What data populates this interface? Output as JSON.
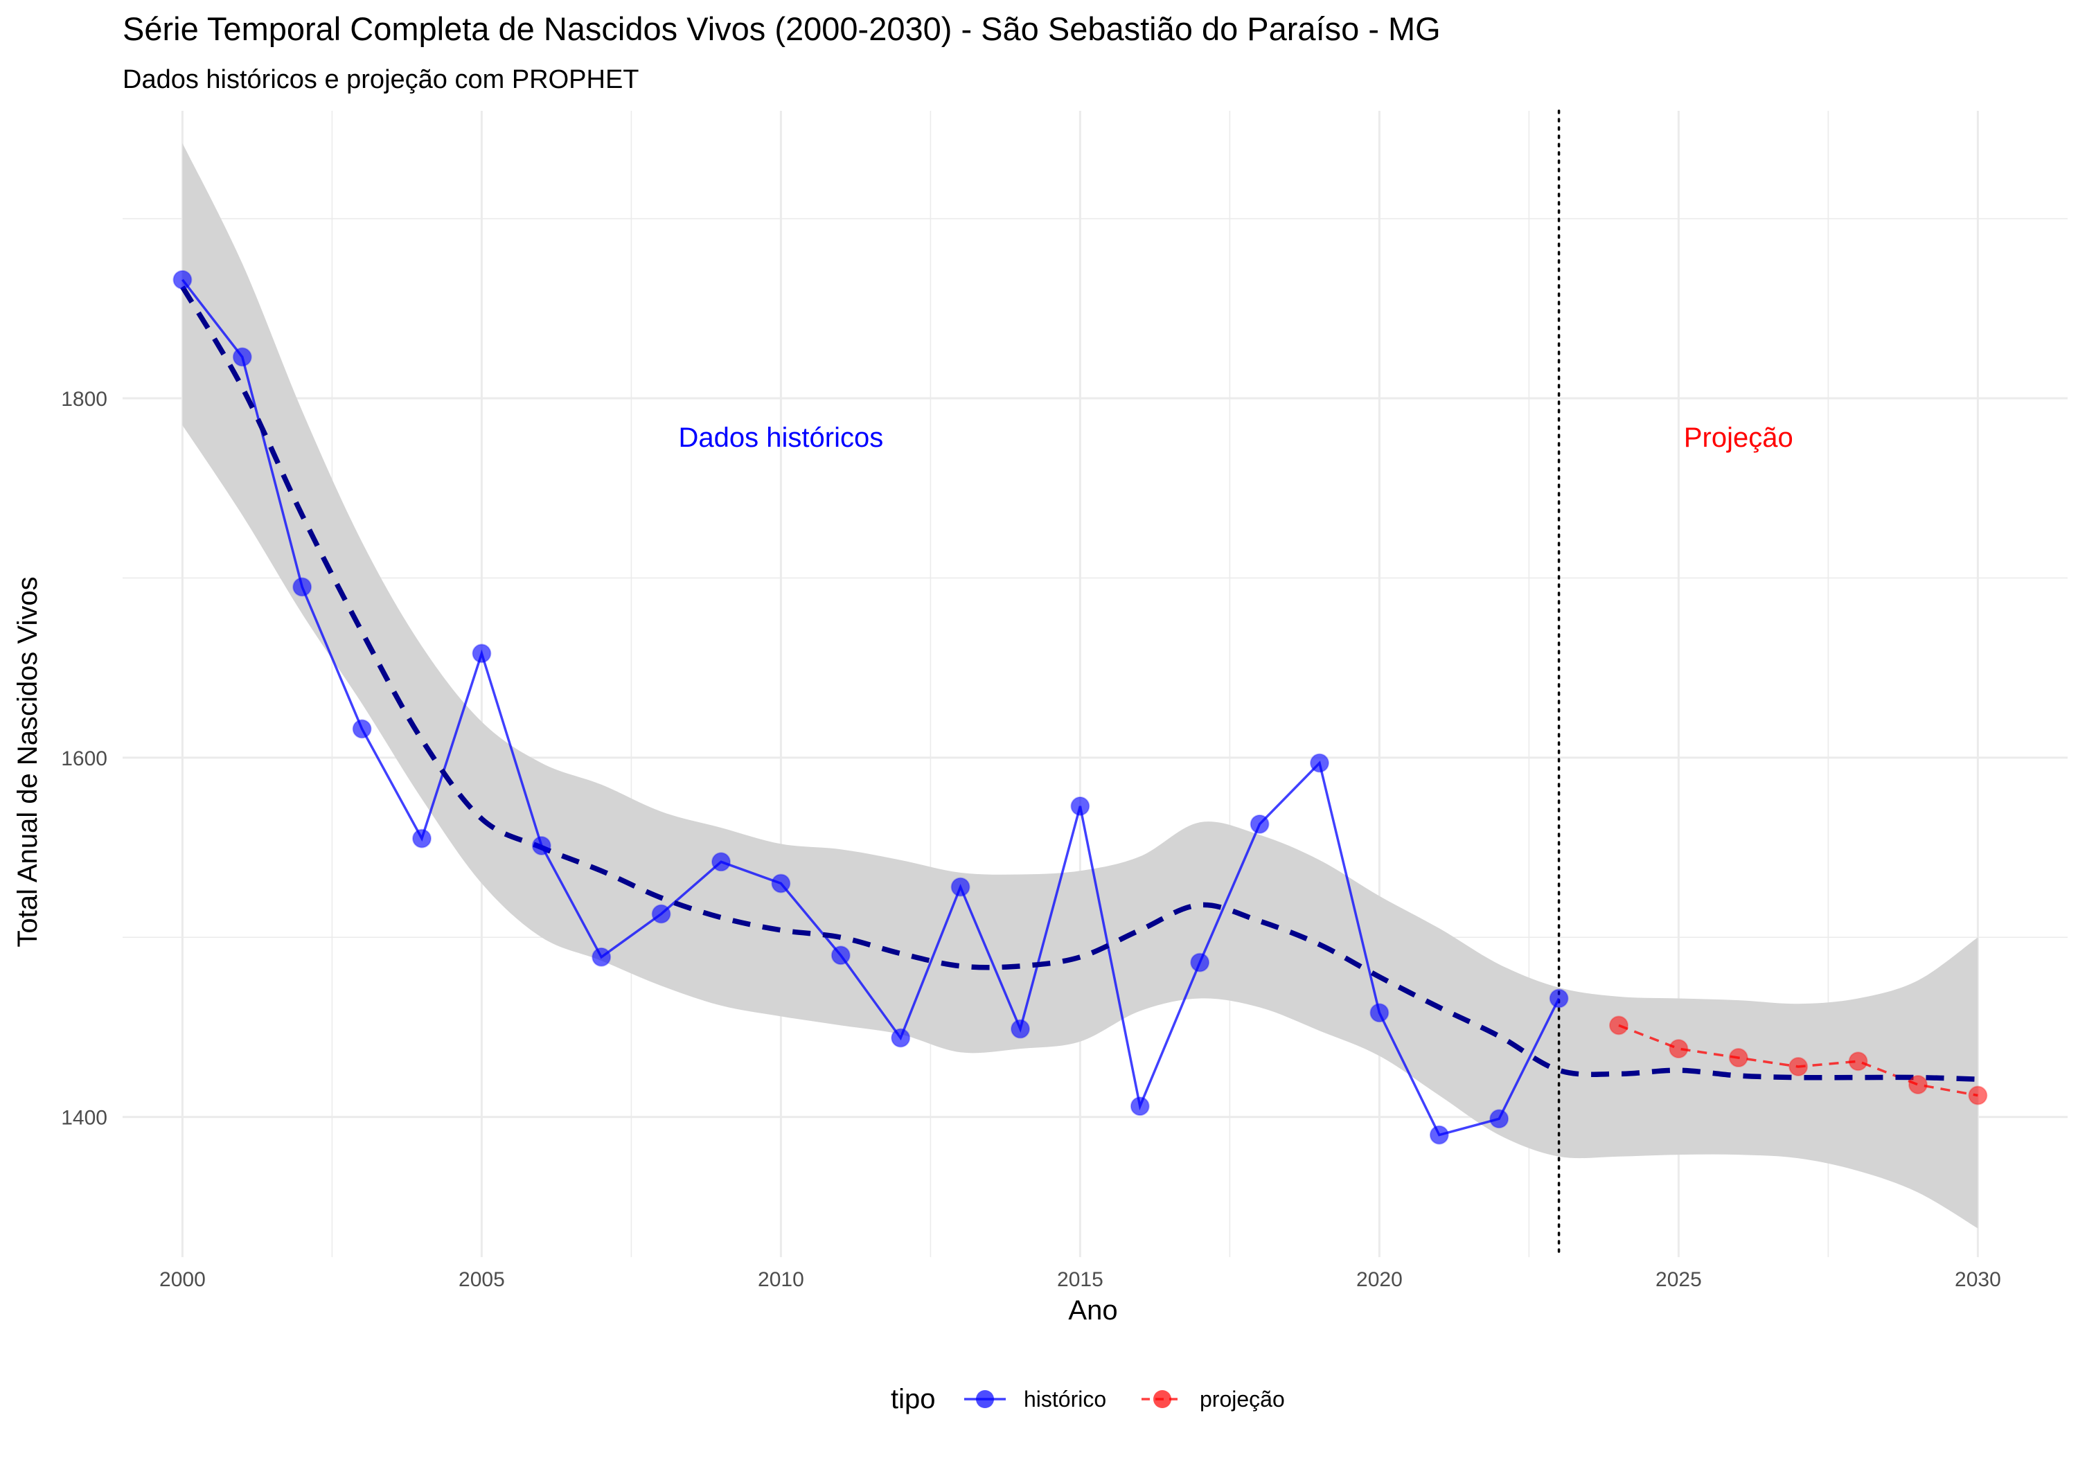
{
  "chart_data": {
    "type": "line",
    "title": "Série Temporal Completa de Nascidos Vivos (2000-2030) -  São Sebastião do Paraíso - MG",
    "subtitle": "Dados históricos e projeção com PROPHET",
    "xlabel": "Ano",
    "ylabel": "Total Anual de Nascidos Vivos",
    "xlim": [
      1999,
      2031.5
    ],
    "ylim": [
      1322,
      1960
    ],
    "x_ticks": [
      2000,
      2005,
      2010,
      2015,
      2020,
      2025,
      2030
    ],
    "y_ticks": [
      1400,
      1600,
      1800
    ],
    "grid": true,
    "legend": {
      "title": "tipo",
      "position": "bottom",
      "entries": [
        {
          "label": "histórico",
          "color": "#0000FF"
        },
        {
          "label": "projeção",
          "color": "#FF0000"
        }
      ]
    },
    "annotations": [
      {
        "text": "Dados históricos",
        "x": 2010,
        "y": 1773,
        "color": "#0000FF"
      },
      {
        "text": "Projeção",
        "x": 2026,
        "y": 1773,
        "color": "#FF0000"
      }
    ],
    "vline": {
      "x": 2023,
      "style": "dotted",
      "color": "#000000"
    },
    "series": [
      {
        "name": "histórico",
        "color": "#0000FF",
        "x": [
          2000,
          2001,
          2002,
          2003,
          2004,
          2005,
          2006,
          2007,
          2008,
          2009,
          2010,
          2011,
          2012,
          2013,
          2014,
          2015,
          2016,
          2017,
          2018,
          2019,
          2020,
          2021,
          2022,
          2023
        ],
        "y": [
          1866,
          1823,
          1695,
          1616,
          1555,
          1658,
          1551,
          1489,
          1513,
          1542,
          1530,
          1490,
          1444,
          1528,
          1449,
          1573,
          1406,
          1486,
          1563,
          1597,
          1458,
          1390,
          1399,
          1466
        ]
      },
      {
        "name": "projeção",
        "color": "#FF0000",
        "x": [
          2024,
          2025,
          2026,
          2027,
          2028,
          2029,
          2030
        ],
        "y": [
          1451,
          1438,
          1433,
          1428,
          1431,
          1418,
          1412
        ]
      }
    ],
    "trend": {
      "color": "#00008B",
      "x": [
        2000,
        2001,
        2002,
        2003,
        2004,
        2005,
        2006,
        2007,
        2008,
        2009,
        2010,
        2011,
        2012,
        2013,
        2014,
        2015,
        2016,
        2017,
        2018,
        2019,
        2020,
        2021,
        2022,
        2023,
        2024,
        2025,
        2026,
        2027,
        2028,
        2029,
        2030
      ],
      "y": [
        1862,
        1806,
        1735,
        1670,
        1610,
        1566,
        1550,
        1537,
        1522,
        1511,
        1504,
        1500,
        1491,
        1484,
        1484,
        1489,
        1504,
        1518,
        1509,
        1496,
        1478,
        1461,
        1445,
        1426,
        1424,
        1426,
        1423,
        1422,
        1422,
        1422,
        1421
      ]
    },
    "band": {
      "x": [
        2000,
        2001,
        2002,
        2003,
        2004,
        2005,
        2006,
        2007,
        2008,
        2009,
        2010,
        2011,
        2012,
        2013,
        2014,
        2015,
        2016,
        2017,
        2018,
        2019,
        2020,
        2021,
        2022,
        2023,
        2024,
        2025,
        2026,
        2027,
        2028,
        2029,
        2030
      ],
      "lower": [
        1785,
        1735,
        1680,
        1630,
        1577,
        1530,
        1500,
        1487,
        1473,
        1462,
        1456,
        1451,
        1446,
        1436,
        1438,
        1442,
        1459,
        1466,
        1461,
        1448,
        1434,
        1412,
        1390,
        1378,
        1378,
        1379,
        1379,
        1377,
        1370,
        1358,
        1338
      ],
      "upper": [
        1942,
        1875,
        1793,
        1720,
        1662,
        1620,
        1597,
        1585,
        1570,
        1561,
        1552,
        1549,
        1543,
        1536,
        1535,
        1537,
        1545,
        1564,
        1557,
        1543,
        1523,
        1505,
        1485,
        1472,
        1467,
        1466,
        1465,
        1463,
        1466,
        1476,
        1500
      ]
    }
  }
}
